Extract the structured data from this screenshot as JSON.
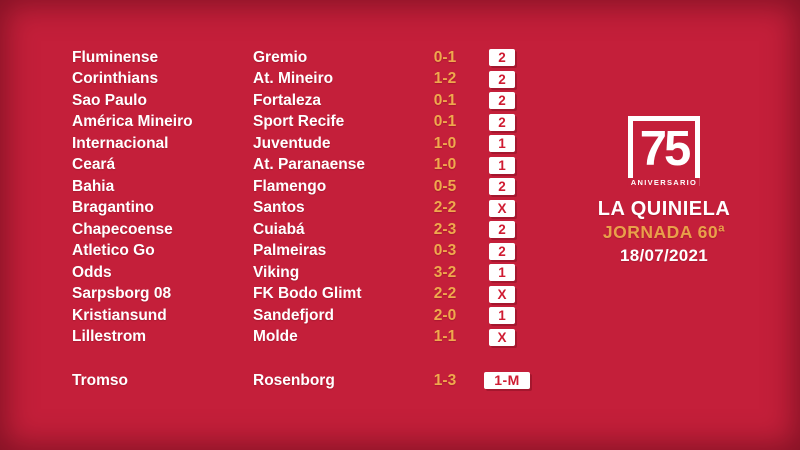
{
  "colors": {
    "background": "#c41f3a",
    "accent_yellow": "#efa94d",
    "badge_text_red": "#cf1b31",
    "text_white": "#ffffff"
  },
  "matches": [
    {
      "home": "Fluminense",
      "away": "Gremio",
      "score": "0-1",
      "result": "2"
    },
    {
      "home": "Corinthians",
      "away": "At. Mineiro",
      "score": "1-2",
      "result": "2"
    },
    {
      "home": "Sao Paulo",
      "away": "Fortaleza",
      "score": "0-1",
      "result": "2"
    },
    {
      "home": "América Mineiro",
      "away": "Sport Recife",
      "score": "0-1",
      "result": "2"
    },
    {
      "home": "Internacional",
      "away": "Juventude",
      "score": "1-0",
      "result": "1"
    },
    {
      "home": "Ceará",
      "away": "At. Paranaense",
      "score": "1-0",
      "result": "1"
    },
    {
      "home": "Bahia",
      "away": "Flamengo",
      "score": "0-5",
      "result": "2"
    },
    {
      "home": "Bragantino",
      "away": "Santos",
      "score": "2-2",
      "result": "X"
    },
    {
      "home": "Chapecoense",
      "away": "Cuiabá",
      "score": "2-3",
      "result": "2"
    },
    {
      "home": "Atletico Go",
      "away": "Palmeiras",
      "score": "0-3",
      "result": "2"
    },
    {
      "home": "Odds",
      "away": "Viking",
      "score": "3-2",
      "result": "1"
    },
    {
      "home": "Sarpsborg 08",
      "away": "FK Bodo Glimt",
      "score": "2-2",
      "result": "X"
    },
    {
      "home": "Kristiansund",
      "away": "Sandefjord",
      "score": "2-0",
      "result": "1"
    },
    {
      "home": "Lillestrom",
      "away": "Molde",
      "score": "1-1",
      "result": "X"
    }
  ],
  "pleno_al_15": {
    "home": "Tromso",
    "away": "Rosenborg",
    "score": "1-3",
    "result": "1-M"
  },
  "panel": {
    "logo_number": "75",
    "logo_caption": "ANIVERSARIO",
    "title": "LA QUINIELA",
    "jornada": "JORNADA 60ª",
    "date": "18/07/2021"
  }
}
